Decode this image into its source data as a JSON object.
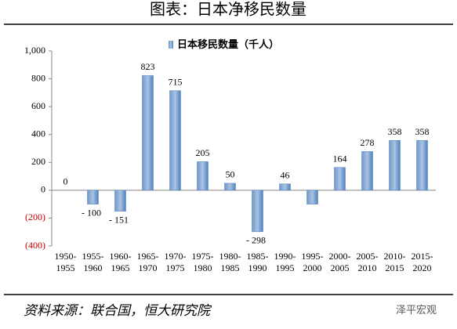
{
  "chart_data": {
    "type": "bar",
    "title": "图表：日本净移民数量",
    "legend": "日本移民数量（千人）",
    "categories": [
      "1950-\n1955",
      "1955-\n1960",
      "1960-\n1965",
      "1965-\n1970",
      "1970-\n1975",
      "1975-\n1980",
      "1980-\n1985",
      "1985-\n1990",
      "1990-\n1995",
      "1995-\n2000",
      "2000-\n2005",
      "2005-\n2010",
      "2010-\n2015",
      "2015-\n2020"
    ],
    "values": [
      0,
      -100,
      -151,
      823,
      715,
      205,
      50,
      -298,
      46,
      -100,
      164,
      278,
      358,
      358
    ],
    "value_labels": [
      "0",
      "- 100",
      "- 151",
      "823",
      "715",
      "205",
      "50",
      "- 298",
      "46",
      null,
      "164",
      "278",
      "358",
      "358"
    ],
    "color": "#4f81bd",
    "ylim": [
      -400,
      1000
    ],
    "yticks": [
      {
        "value": -400,
        "label": "(400)"
      },
      {
        "value": -200,
        "label": "(200)"
      },
      0,
      200,
      400,
      600,
      800,
      {
        "value": 1000,
        "label": "1,000"
      }
    ],
    "negative_tick_color": "#c00000",
    "source": "资料来源：联合国，恒大研究院",
    "watermark": "泽平宏观"
  }
}
